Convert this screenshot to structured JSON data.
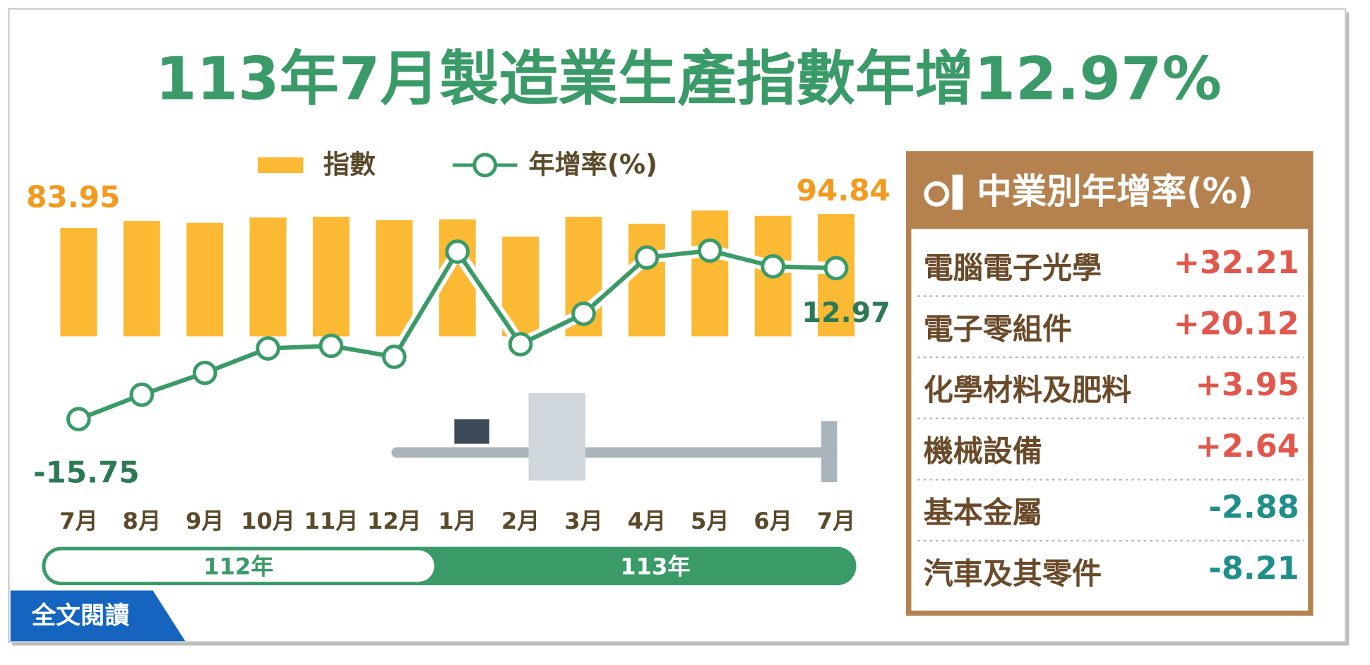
{
  "chart_data": {
    "type": "bar-line",
    "title": "113年7月製造業生產指數年增12.97%",
    "categories": [
      "7月",
      "8月",
      "9月",
      "10月",
      "11月",
      "12月",
      "1月",
      "2月",
      "3月",
      "4月",
      "5月",
      "6月",
      "7月"
    ],
    "year_groups": [
      "112年",
      "113年"
    ],
    "series": [
      {
        "name": "指數",
        "color": "#fbb934",
        "values": [
          83.95,
          89.4,
          88.0,
          92.1,
          92.7,
          90.0,
          90.7,
          77.2,
          92.7,
          87.3,
          97.5,
          93.4,
          94.84
        ]
      },
      {
        "name": "年增率(%)",
        "color": "#3a9b68",
        "values": [
          -15.75,
          -11.1,
          -6.95,
          -2.3,
          -1.8,
          -3.9,
          16.1,
          -1.5,
          4.3,
          15.0,
          16.3,
          13.3,
          12.97
        ]
      }
    ]
  },
  "industry_table": {
    "title": "中業別年增率(%)",
    "rows": [
      [
        "電腦電子光學",
        "+32.21"
      ],
      [
        "電子零組件",
        "+20.12"
      ],
      [
        "化學材料及肥料",
        "+3.95"
      ],
      [
        "機械設備",
        "+2.64"
      ],
      [
        "基本金屬",
        "-2.88"
      ],
      [
        "汽車及其零件",
        "-8.21"
      ]
    ]
  },
  "button": "全文閱讀"
}
